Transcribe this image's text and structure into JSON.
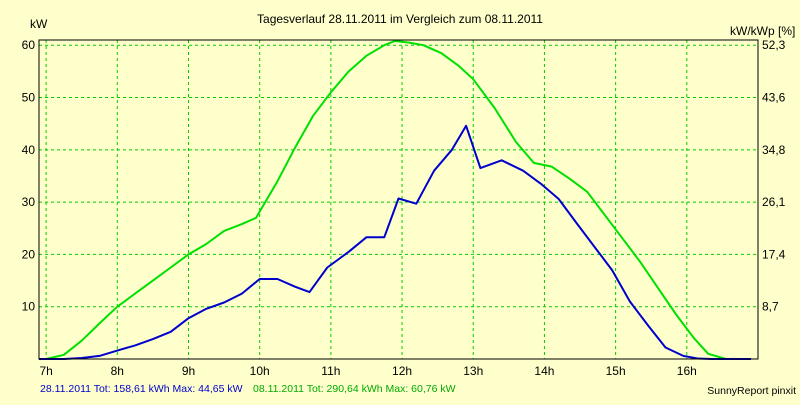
{
  "chart_data": {
    "type": "line",
    "title": "Tagesverlauf 28.11.2011 im Vergleich zum 08.11.2011",
    "ylabel_left": "kW",
    "ylabel_right": "kW/kWp [%]",
    "x_ticks": [
      "7h",
      "8h",
      "9h",
      "10h",
      "11h",
      "12h",
      "13h",
      "14h",
      "15h",
      "16h"
    ],
    "x_tick_values": [
      7,
      8,
      9,
      10,
      11,
      12,
      13,
      14,
      15,
      16
    ],
    "xlim": [
      6.9,
      17.0
    ],
    "ylim": [
      0,
      61
    ],
    "y_left_ticks": [
      10,
      20,
      30,
      40,
      50,
      60
    ],
    "y_right_ticks": [
      "8,7",
      "17,4",
      "26,1",
      "34,8",
      "43,6",
      "52,3"
    ],
    "grid": true,
    "colors": {
      "background": "#ffffcc",
      "grid": "#00cc00",
      "axis": "#000000",
      "series_1": "#0000cc",
      "series_2": "#00e000"
    },
    "series": [
      {
        "x": [
          6.9,
          7.0,
          7.25,
          7.5,
          7.75,
          8.0,
          8.25,
          8.5,
          8.75,
          9.0,
          9.25,
          9.5,
          9.75,
          10.0,
          10.25,
          10.5,
          10.7,
          10.95,
          11.25,
          11.5,
          11.75,
          11.95,
          12.2,
          12.45,
          12.7,
          12.9,
          13.1,
          13.4,
          13.7,
          13.95,
          14.2,
          14.45,
          14.7,
          14.95,
          15.2,
          15.45,
          15.7,
          15.95,
          16.15,
          16.35,
          16.6,
          16.9
        ],
        "values": [
          0,
          0,
          0,
          0.2,
          0.6,
          1.6,
          2.6,
          3.8,
          5.2,
          7.8,
          9.6,
          10.8,
          12.5,
          15.3,
          15.3,
          13.8,
          12.8,
          17.5,
          20.5,
          23.3,
          23.3,
          30.7,
          29.7,
          36.0,
          40.0,
          44.6,
          36.5,
          38.0,
          36.0,
          33.5,
          30.6,
          26.0,
          21.5,
          17.0,
          11.0,
          6.5,
          2.2,
          0.6,
          0.1,
          0,
          0,
          0
        ]
      },
      {
        "x": [
          6.9,
          7.0,
          7.25,
          7.5,
          7.75,
          8.0,
          8.25,
          8.5,
          8.75,
          9.0,
          9.25,
          9.5,
          9.75,
          9.95,
          10.25,
          10.5,
          10.75,
          11.0,
          11.25,
          11.5,
          11.75,
          11.9,
          12.1,
          12.3,
          12.55,
          12.8,
          13.0,
          13.3,
          13.6,
          13.85,
          14.1,
          14.35,
          14.6,
          14.85,
          15.1,
          15.35,
          15.6,
          15.85,
          16.1,
          16.3,
          16.55,
          16.9
        ],
        "values": [
          0,
          0,
          0.8,
          3.5,
          6.8,
          10.0,
          12.5,
          15.0,
          17.5,
          20.0,
          22.0,
          24.5,
          25.8,
          27.0,
          34.0,
          40.5,
          46.5,
          51.0,
          55.0,
          58.0,
          60.0,
          60.8,
          60.5,
          60.0,
          58.5,
          56.0,
          53.5,
          48.0,
          41.5,
          37.5,
          36.8,
          34.5,
          32.0,
          27.5,
          23.0,
          18.5,
          13.5,
          8.5,
          4.0,
          1.0,
          0,
          0
        ]
      }
    ],
    "footer": {
      "series_1_text": "28.11.2011 Tot: 158,61 kWh Max: 44,65 kW",
      "series_2_text": "08.11.2011 Tot: 290,64 kWh Max: 60,76 kW",
      "credit": "SunnyReport pinxit"
    }
  }
}
